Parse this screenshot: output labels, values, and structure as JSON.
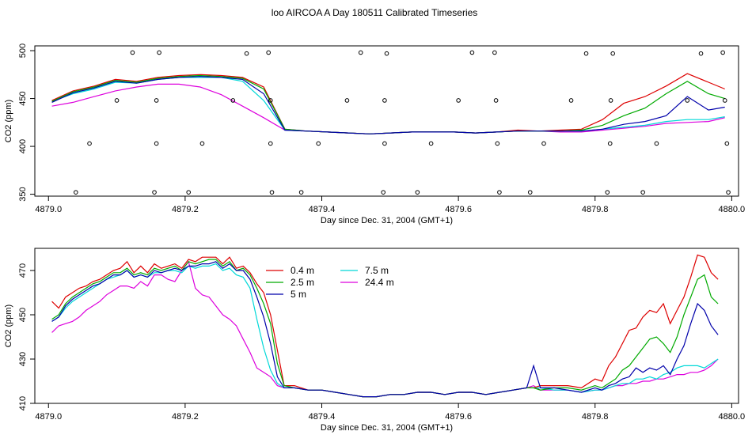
{
  "title": "loo AIRCOA A  Day 180511  Calibrated Timeseries",
  "colors": {
    "0.4 m": "#dd0000",
    "2.5 m": "#00aa00",
    "5 m": "#0000aa",
    "7.5 m": "#00d8d8",
    "24.4 m": "#dd00dd",
    "axes": "#000000"
  },
  "chart_data": [
    {
      "type": "line",
      "title": "",
      "xlabel": "Day since Dec. 31, 2004 (GMT+1)",
      "ylabel": "CO2 (ppm)",
      "xlim": [
        4878.98,
        4880.01
      ],
      "ylim": [
        348,
        505
      ],
      "xticks": [
        "4879.0",
        "4879.2",
        "4879.4",
        "4879.6",
        "4879.8",
        "4880.0"
      ],
      "yticks": [
        "350",
        "400",
        "450",
        "500"
      ],
      "grid": false,
      "legend": "none",
      "x": [
        4879.005,
        4879.036,
        4879.067,
        4879.098,
        4879.129,
        4879.16,
        4879.191,
        4879.222,
        4879.253,
        4879.284,
        4879.315,
        4879.346,
        4879.377,
        4879.408,
        4879.439,
        4879.47,
        4879.501,
        4879.532,
        4879.563,
        4879.594,
        4879.625,
        4879.656,
        4879.687,
        4879.718,
        4879.749,
        4879.78,
        4879.811,
        4879.842,
        4879.873,
        4879.904,
        4879.935,
        4879.966,
        4879.99
      ],
      "series": [
        {
          "name": "0.4 m",
          "color": "#dd0000",
          "values": [
            448,
            458,
            463,
            470,
            468,
            472,
            474,
            475,
            474,
            472,
            462,
            418,
            416,
            415,
            414,
            413,
            414,
            415,
            415,
            415,
            414,
            415,
            417,
            416,
            417,
            418,
            428,
            445,
            452,
            463,
            476,
            467,
            460
          ]
        },
        {
          "name": "2.5 m",
          "color": "#00aa00",
          "values": [
            447,
            457,
            462,
            469,
            467,
            471,
            473,
            474,
            473,
            471,
            460,
            418,
            416,
            415,
            414,
            413,
            414,
            415,
            415,
            415,
            414,
            415,
            416,
            416,
            416,
            417,
            422,
            432,
            440,
            455,
            468,
            455,
            450
          ]
        },
        {
          "name": "5 m",
          "color": "#0000aa",
          "values": [
            446,
            456,
            461,
            468,
            466,
            470,
            472,
            473,
            472,
            470,
            455,
            417,
            416,
            415,
            414,
            413,
            414,
            415,
            415,
            415,
            414,
            415,
            416,
            416,
            416,
            416,
            418,
            423,
            426,
            432,
            452,
            438,
            441
          ]
        },
        {
          "name": "7.5 m",
          "color": "#00d8d8",
          "values": [
            447,
            455,
            460,
            467,
            466,
            470,
            472,
            472,
            472,
            468,
            448,
            417,
            416,
            415,
            414,
            413,
            414,
            415,
            415,
            415,
            414,
            415,
            416,
            416,
            416,
            416,
            418,
            420,
            422,
            426,
            428,
            428,
            431
          ]
        },
        {
          "name": "24.4 m",
          "color": "#dd00dd",
          "values": [
            442,
            446,
            452,
            458,
            462,
            465,
            465,
            462,
            454,
            442,
            430,
            417,
            416,
            415,
            414,
            413,
            414,
            415,
            415,
            415,
            414,
            415,
            416,
            416,
            415,
            415,
            417,
            419,
            421,
            424,
            425,
            426,
            430
          ]
        }
      ],
      "markers": [
        {
          "x": 4879.04,
          "y": 352
        },
        {
          "x": 4879.06,
          "y": 403
        },
        {
          "x": 4879.1,
          "y": 448
        },
        {
          "x": 4879.123,
          "y": 498
        },
        {
          "x": 4879.155,
          "y": 352
        },
        {
          "x": 4879.158,
          "y": 403
        },
        {
          "x": 4879.158,
          "y": 448
        },
        {
          "x": 4879.162,
          "y": 498
        },
        {
          "x": 4879.205,
          "y": 352
        },
        {
          "x": 4879.225,
          "y": 403
        },
        {
          "x": 4879.27,
          "y": 448
        },
        {
          "x": 4879.29,
          "y": 497
        },
        {
          "x": 4879.322,
          "y": 498
        },
        {
          "x": 4879.325,
          "y": 448
        },
        {
          "x": 4879.325,
          "y": 403
        },
        {
          "x": 4879.327,
          "y": 352
        },
        {
          "x": 4879.37,
          "y": 352
        },
        {
          "x": 4879.395,
          "y": 403
        },
        {
          "x": 4879.437,
          "y": 448
        },
        {
          "x": 4879.457,
          "y": 498
        },
        {
          "x": 4879.49,
          "y": 352
        },
        {
          "x": 4879.492,
          "y": 403
        },
        {
          "x": 4879.492,
          "y": 448
        },
        {
          "x": 4879.495,
          "y": 497
        },
        {
          "x": 4879.54,
          "y": 352
        },
        {
          "x": 4879.56,
          "y": 403
        },
        {
          "x": 4879.6,
          "y": 448
        },
        {
          "x": 4879.62,
          "y": 498
        },
        {
          "x": 4879.653,
          "y": 498
        },
        {
          "x": 4879.655,
          "y": 448
        },
        {
          "x": 4879.657,
          "y": 403
        },
        {
          "x": 4879.66,
          "y": 352
        },
        {
          "x": 4879.705,
          "y": 352
        },
        {
          "x": 4879.725,
          "y": 403
        },
        {
          "x": 4879.765,
          "y": 448
        },
        {
          "x": 4879.787,
          "y": 497
        },
        {
          "x": 4879.818,
          "y": 352
        },
        {
          "x": 4879.822,
          "y": 403
        },
        {
          "x": 4879.823,
          "y": 448
        },
        {
          "x": 4879.826,
          "y": 497
        },
        {
          "x": 4879.87,
          "y": 352
        },
        {
          "x": 4879.89,
          "y": 403
        },
        {
          "x": 4879.935,
          "y": 448
        },
        {
          "x": 4879.955,
          "y": 497
        },
        {
          "x": 4879.987,
          "y": 498
        },
        {
          "x": 4879.99,
          "y": 448
        },
        {
          "x": 4879.993,
          "y": 403
        },
        {
          "x": 4879.995,
          "y": 352
        }
      ]
    },
    {
      "type": "line",
      "title": "",
      "xlabel": "Day since Dec. 31, 2004 (GMT+1)",
      "ylabel": "CO2 (ppm)",
      "xlim": [
        4878.98,
        4880.01
      ],
      "ylim": [
        410,
        480
      ],
      "xticks": [
        "4879.0",
        "4879.2",
        "4879.4",
        "4879.6",
        "4879.8",
        "4880.0"
      ],
      "yticks": [
        "410",
        "430",
        "450",
        "470"
      ],
      "grid": false,
      "legend": "top-center",
      "x": [
        4879.005,
        4879.015,
        4879.025,
        4879.035,
        4879.045,
        4879.055,
        4879.065,
        4879.075,
        4879.085,
        4879.095,
        4879.105,
        4879.115,
        4879.125,
        4879.135,
        4879.145,
        4879.155,
        4879.165,
        4879.175,
        4879.185,
        4879.195,
        4879.205,
        4879.215,
        4879.225,
        4879.235,
        4879.245,
        4879.255,
        4879.265,
        4879.275,
        4879.285,
        4879.295,
        4879.305,
        4879.315,
        4879.325,
        4879.335,
        4879.345,
        4879.36,
        4879.38,
        4879.4,
        4879.42,
        4879.44,
        4879.46,
        4879.48,
        4879.5,
        4879.52,
        4879.54,
        4879.56,
        4879.58,
        4879.6,
        4879.62,
        4879.64,
        4879.66,
        4879.68,
        4879.7,
        4879.71,
        4879.72,
        4879.74,
        4879.76,
        4879.78,
        4879.8,
        4879.81,
        4879.82,
        4879.83,
        4879.84,
        4879.85,
        4879.86,
        4879.87,
        4879.88,
        4879.89,
        4879.9,
        4879.91,
        4879.92,
        4879.93,
        4879.94,
        4879.95,
        4879.96,
        4879.97,
        4879.98
      ],
      "series": [
        {
          "name": "0.4 m",
          "color": "#dd0000",
          "values": [
            456,
            453,
            458,
            460,
            462,
            463,
            465,
            466,
            468,
            470,
            471,
            474,
            469,
            472,
            469,
            473,
            471,
            472,
            473,
            471,
            475,
            474,
            476,
            476,
            476,
            473,
            476,
            471,
            472,
            469,
            464,
            460,
            450,
            434,
            418,
            418,
            416,
            416,
            415,
            414,
            413,
            413,
            414,
            414,
            415,
            415,
            414,
            415,
            415,
            414,
            415,
            416,
            417,
            417,
            418,
            418,
            418,
            417,
            421,
            420,
            427,
            431,
            437,
            443,
            444,
            449,
            452,
            451,
            455,
            446,
            452,
            458,
            467,
            477,
            476,
            469,
            466
          ]
        },
        {
          "name": "2.5 m",
          "color": "#00aa00",
          "values": [
            448,
            450,
            455,
            458,
            460,
            462,
            464,
            465,
            467,
            469,
            469,
            471,
            468,
            469,
            468,
            471,
            470,
            471,
            472,
            470,
            474,
            473,
            474,
            475,
            475,
            472,
            474,
            470,
            471,
            468,
            462,
            455,
            446,
            428,
            418,
            417,
            416,
            416,
            415,
            414,
            413,
            413,
            414,
            414,
            415,
            415,
            414,
            415,
            415,
            414,
            415,
            416,
            417,
            417,
            416,
            417,
            417,
            416,
            418,
            417,
            419,
            421,
            425,
            427,
            431,
            435,
            439,
            440,
            437,
            433,
            440,
            450,
            458,
            466,
            468,
            458,
            455
          ]
        },
        {
          "name": "5 m",
          "color": "#0000aa",
          "values": [
            447,
            449,
            454,
            457,
            459,
            461,
            463,
            464,
            466,
            468,
            468,
            470,
            467,
            468,
            467,
            470,
            469,
            470,
            471,
            470,
            472,
            472,
            473,
            473,
            474,
            471,
            473,
            470,
            470,
            466,
            458,
            449,
            437,
            422,
            417,
            417,
            416,
            416,
            415,
            414,
            413,
            413,
            414,
            414,
            415,
            415,
            414,
            415,
            415,
            414,
            415,
            416,
            417,
            427,
            417,
            417,
            416,
            415,
            417,
            416,
            418,
            419,
            421,
            422,
            426,
            424,
            426,
            425,
            427,
            423,
            430,
            436,
            446,
            455,
            452,
            445,
            441
          ]
        },
        {
          "name": "7.5 m",
          "color": "#00d8d8",
          "values": [
            447,
            449,
            453,
            456,
            458,
            460,
            462,
            464,
            466,
            467,
            468,
            470,
            467,
            468,
            467,
            469,
            469,
            470,
            470,
            469,
            472,
            471,
            472,
            472,
            473,
            470,
            471,
            468,
            467,
            462,
            448,
            435,
            425,
            419,
            417,
            417,
            416,
            416,
            415,
            414,
            413,
            413,
            414,
            414,
            415,
            415,
            414,
            415,
            415,
            414,
            415,
            416,
            417,
            417,
            417,
            416,
            416,
            415,
            416,
            416,
            417,
            418,
            419,
            419,
            421,
            421,
            422,
            421,
            423,
            424,
            426,
            427,
            427,
            427,
            426,
            428,
            430
          ]
        },
        {
          "name": "24.4 m",
          "color": "#dd00dd",
          "values": [
            442,
            445,
            446,
            447,
            449,
            452,
            454,
            456,
            459,
            461,
            463,
            463,
            462,
            465,
            463,
            468,
            468,
            466,
            465,
            470,
            474,
            462,
            459,
            458,
            454,
            450,
            448,
            445,
            439,
            433,
            426,
            424,
            422,
            418,
            417,
            417,
            416,
            416,
            415,
            414,
            413,
            413,
            414,
            414,
            415,
            415,
            414,
            415,
            415,
            414,
            415,
            416,
            417,
            418,
            416,
            416,
            416,
            415,
            416,
            416,
            417,
            418,
            418,
            419,
            419,
            420,
            420,
            421,
            421,
            422,
            423,
            423,
            424,
            424,
            425,
            427,
            430
          ]
        }
      ],
      "legend_entries": [
        {
          "label": "0.4 m",
          "color": "#dd0000"
        },
        {
          "label": "2.5 m",
          "color": "#00aa00"
        },
        {
          "label": "5 m",
          "color": "#0000aa"
        },
        {
          "label": "7.5 m",
          "color": "#00d8d8"
        },
        {
          "label": "24.4 m",
          "color": "#dd00dd"
        }
      ]
    }
  ]
}
